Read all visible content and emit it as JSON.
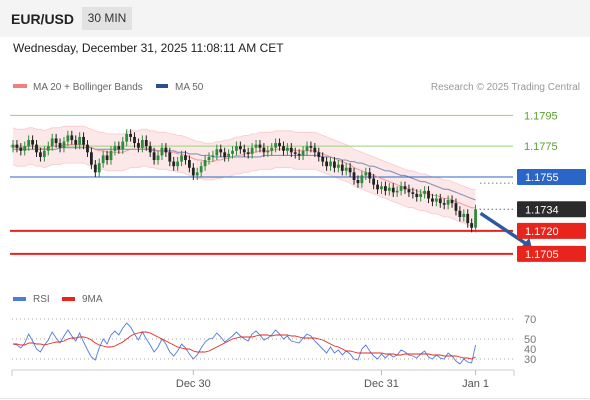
{
  "header": {
    "symbol": "EUR/USD",
    "timeframe": "30 MIN"
  },
  "timestamp": "Wednesday, December 31, 2025 11:08:11 AM CET",
  "copyright": "Research © 2025 Trading Central",
  "colors": {
    "bollinger": "#f08080",
    "ma50": "#2c4f8f",
    "green_level": "#5a9e2e",
    "blue_level": "#2a66c7",
    "red_level": "#e8241c",
    "last_price": "#2b2b2b",
    "arrow": "#2c5aa0",
    "rsi": "#4f7be0",
    "rsi_ma": "#e8241c",
    "candle_up": "#2e8b3a",
    "candle_down": "#222222"
  },
  "chart_data": [
    {
      "type": "candlestick",
      "legend": [
        {
          "name": "MA 20 + Bollinger Bands",
          "color": "#f08080"
        },
        {
          "name": "MA 50",
          "color": "#2c4f8f"
        }
      ],
      "ylim": [
        1.169,
        1.1805
      ],
      "x_ticks": [
        {
          "label": "Dec 30",
          "index": 46
        },
        {
          "label": "Dec 31",
          "index": 94
        },
        {
          "label": "Jan 1",
          "index": 118
        }
      ],
      "levels": [
        {
          "value": 1.1795,
          "label": "1.1795",
          "kind": "resistance"
        },
        {
          "value": 1.1775,
          "label": "1.1775",
          "kind": "resistance"
        },
        {
          "value": 1.1755,
          "label": "1.1755",
          "kind": "pivot"
        },
        {
          "value": 1.1734,
          "label": "1.1734",
          "kind": "last"
        },
        {
          "value": 1.172,
          "label": "1.1720",
          "kind": "support"
        },
        {
          "value": 1.1705,
          "label": "1.1705",
          "kind": "support"
        }
      ],
      "forecast": {
        "from_index": 118,
        "from_value": 1.1734,
        "to_index": 133,
        "to_value": 1.1705
      },
      "closes": [
        1.1776,
        1.1774,
        1.1772,
        1.1775,
        1.1779,
        1.1776,
        1.1771,
        1.1768,
        1.1772,
        1.1775,
        1.178,
        1.1777,
        1.1774,
        1.1778,
        1.1782,
        1.1779,
        1.1776,
        1.1781,
        1.1776,
        1.1771,
        1.1763,
        1.1758,
        1.1764,
        1.1769,
        1.1766,
        1.1772,
        1.1775,
        1.1773,
        1.1778,
        1.1783,
        1.1781,
        1.1777,
        1.1774,
        1.1779,
        1.1775,
        1.1771,
        1.1766,
        1.1769,
        1.1774,
        1.1771,
        1.1765,
        1.1762,
        1.1765,
        1.1769,
        1.1766,
        1.1761,
        1.1756,
        1.1758,
        1.1762,
        1.1766,
        1.1768,
        1.1769,
        1.1773,
        1.1771,
        1.1768,
        1.177,
        1.1772,
        1.1775,
        1.1773,
        1.1771,
        1.177,
        1.1774,
        1.1776,
        1.1774,
        1.1771,
        1.1772,
        1.1774,
        1.1777,
        1.1775,
        1.1772,
        1.1774,
        1.1771,
        1.177,
        1.1769,
        1.1772,
        1.1775,
        1.1774,
        1.1771,
        1.1768,
        1.1765,
        1.1762,
        1.1765,
        1.1761,
        1.1763,
        1.1759,
        1.1761,
        1.1758,
        1.1753,
        1.1751,
        1.1756,
        1.1758,
        1.1754,
        1.175,
        1.1747,
        1.1749,
        1.1746,
        1.1748,
        1.1745,
        1.1746,
        1.1749,
        1.1747,
        1.1745,
        1.1744,
        1.1742,
        1.1744,
        1.1746,
        1.1741,
        1.1739,
        1.1741,
        1.1738,
        1.1737,
        1.174,
        1.1738,
        1.1733,
        1.1729,
        1.1731,
        1.1725,
        1.1722,
        1.1734
      ],
      "ma20": [
        1.1775,
        1.1774,
        1.1774,
        1.1774,
        1.1775,
        1.1775,
        1.1774,
        1.1774,
        1.1773,
        1.1774,
        1.1775,
        1.1775,
        1.1775,
        1.1776,
        1.1776,
        1.1776,
        1.1776,
        1.1776,
        1.1776,
        1.1775,
        1.1774,
        1.1773,
        1.1772,
        1.1772,
        1.1771,
        1.1771,
        1.1771,
        1.1771,
        1.1771,
        1.1772,
        1.1773,
        1.1773,
        1.1773,
        1.1774,
        1.1774,
        1.1773,
        1.1773,
        1.1772,
        1.1772,
        1.1772,
        1.1771,
        1.1771,
        1.177,
        1.177,
        1.1769,
        1.1768,
        1.1767,
        1.1766,
        1.1766,
        1.1765,
        1.1765,
        1.1765,
        1.1766,
        1.1766,
        1.1767,
        1.1767,
        1.1768,
        1.1769,
        1.1769,
        1.177,
        1.177,
        1.1771,
        1.1771,
        1.1772,
        1.1772,
        1.1772,
        1.1772,
        1.1773,
        1.1773,
        1.1773,
        1.1773,
        1.1773,
        1.1772,
        1.1772,
        1.1772,
        1.1772,
        1.1772,
        1.1772,
        1.1771,
        1.177,
        1.1769,
        1.1768,
        1.1767,
        1.1766,
        1.1765,
        1.1764,
        1.1763,
        1.1761,
        1.176,
        1.1759,
        1.1758,
        1.1757,
        1.1756,
        1.1755,
        1.1754,
        1.1753,
        1.1752,
        1.1751,
        1.175,
        1.1749,
        1.1748,
        1.1747,
        1.1747,
        1.1746,
        1.1745,
        1.1745,
        1.1744,
        1.1743,
        1.1743,
        1.1742,
        1.1741,
        1.1741,
        1.174,
        1.1739,
        1.1738,
        1.1737,
        1.1736,
        1.1735,
        1.1735
      ],
      "band_width": 0.0012,
      "ma50": [
        1.1773,
        1.1773,
        1.1773,
        1.1773,
        1.1773,
        1.1773,
        1.1773,
        1.1773,
        1.1773,
        1.1773,
        1.1773,
        1.1773,
        1.1774,
        1.1774,
        1.1774,
        1.1774,
        1.1774,
        1.1774,
        1.1774,
        1.1774,
        1.1774,
        1.1773,
        1.1773,
        1.1773,
        1.1773,
        1.1773,
        1.1773,
        1.1773,
        1.1773,
        1.1773,
        1.1773,
        1.1773,
        1.1773,
        1.1773,
        1.1773,
        1.1773,
        1.1772,
        1.1772,
        1.1772,
        1.1772,
        1.1772,
        1.1772,
        1.1771,
        1.1771,
        1.1771,
        1.177,
        1.177,
        1.177,
        1.1769,
        1.1769,
        1.1769,
        1.1768,
        1.1768,
        1.1768,
        1.1768,
        1.1768,
        1.1768,
        1.1768,
        1.1768,
        1.1768,
        1.1768,
        1.1768,
        1.1768,
        1.1768,
        1.1769,
        1.1769,
        1.1769,
        1.1769,
        1.1769,
        1.1769,
        1.1769,
        1.1769,
        1.1769,
        1.1769,
        1.1769,
        1.1769,
        1.1769,
        1.1769,
        1.1769,
        1.1768,
        1.1768,
        1.1768,
        1.1767,
        1.1767,
        1.1766,
        1.1766,
        1.1765,
        1.1765,
        1.1764,
        1.1764,
        1.1763,
        1.1762,
        1.1762,
        1.1761,
        1.176,
        1.1759,
        1.1759,
        1.1758,
        1.1757,
        1.1756,
        1.1756,
        1.1755,
        1.1754,
        1.1753,
        1.1752,
        1.1752,
        1.1751,
        1.175,
        1.1749,
        1.1748,
        1.1747,
        1.1747,
        1.1746,
        1.1745,
        1.1744,
        1.1743,
        1.1742,
        1.1741,
        1.174
      ]
    },
    {
      "type": "line",
      "legend": [
        {
          "name": "RSI",
          "color": "#4f7be0"
        },
        {
          "name": "9MA",
          "color": "#e8241c"
        }
      ],
      "ylim": [
        25,
        75
      ],
      "y_ticks": [
        70,
        50,
        40,
        30
      ],
      "guides": [
        70,
        50,
        30
      ],
      "series": [
        {
          "name": "RSI",
          "values": [
            45,
            44,
            41,
            46,
            55,
            48,
            40,
            37,
            44,
            49,
            57,
            51,
            46,
            53,
            59,
            53,
            48,
            56,
            47,
            39,
            32,
            29,
            41,
            50,
            45,
            54,
            58,
            54,
            61,
            66,
            62,
            55,
            49,
            57,
            50,
            44,
            37,
            42,
            50,
            45,
            37,
            33,
            38,
            45,
            41,
            35,
            30,
            34,
            41,
            47,
            50,
            51,
            56,
            52,
            47,
            50,
            53,
            57,
            53,
            50,
            48,
            55,
            58,
            54,
            49,
            51,
            54,
            59,
            55,
            50,
            53,
            48,
            47,
            46,
            51,
            55,
            53,
            48,
            44,
            40,
            36,
            42,
            36,
            39,
            34,
            38,
            35,
            30,
            29,
            40,
            44,
            38,
            33,
            30,
            35,
            31,
            35,
            32,
            34,
            39,
            37,
            34,
            33,
            31,
            35,
            38,
            32,
            30,
            34,
            31,
            30,
            36,
            33,
            28,
            25,
            30,
            27,
            26,
            44
          ]
        },
        {
          "name": "9MA",
          "values": [
            45,
            45,
            44,
            44,
            46,
            46,
            45,
            45,
            44,
            45,
            46,
            47,
            47,
            48,
            50,
            51,
            51,
            52,
            52,
            51,
            49,
            46,
            44,
            43,
            42,
            42,
            43,
            45,
            47,
            50,
            53,
            55,
            56,
            57,
            57,
            56,
            54,
            52,
            50,
            48,
            46,
            44,
            42,
            41,
            40,
            40,
            38,
            37,
            37,
            37,
            38,
            40,
            42,
            44,
            46,
            48,
            50,
            51,
            52,
            52,
            52,
            52,
            53,
            54,
            54,
            54,
            53,
            54,
            54,
            54,
            54,
            53,
            53,
            52,
            51,
            51,
            51,
            51,
            50,
            49,
            47,
            45,
            43,
            42,
            40,
            38,
            38,
            37,
            36,
            36,
            36,
            36,
            36,
            36,
            36,
            35,
            35,
            35,
            34,
            34,
            35,
            35,
            35,
            35,
            35,
            35,
            35,
            34,
            34,
            34,
            33,
            33,
            33,
            33,
            32,
            31,
            31,
            30,
            32
          ]
        }
      ]
    }
  ]
}
